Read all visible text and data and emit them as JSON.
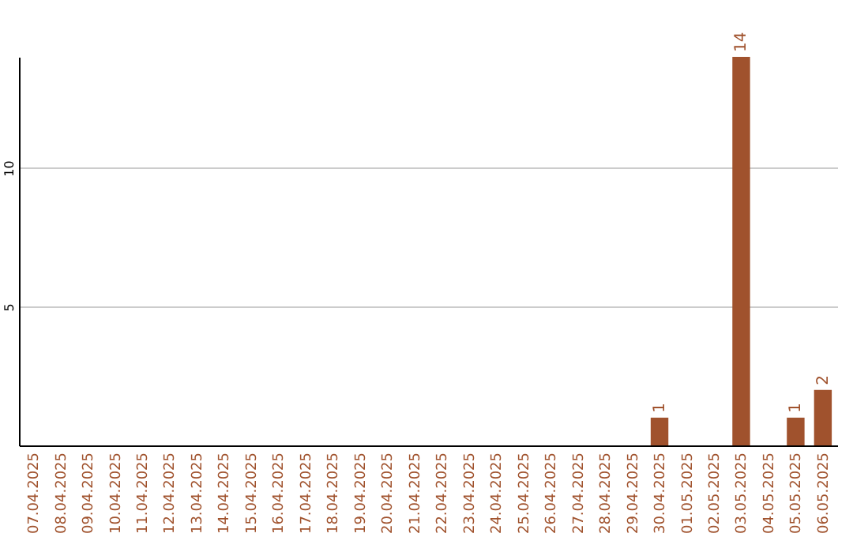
{
  "chart_data": {
    "type": "bar",
    "categories": [
      "07.04.2025",
      "08.04.2025",
      "09.04.2025",
      "10.04.2025",
      "11.04.2025",
      "12.04.2025",
      "13.04.2025",
      "14.04.2025",
      "15.04.2025",
      "16.04.2025",
      "17.04.2025",
      "18.04.2025",
      "19.04.2025",
      "20.04.2025",
      "21.04.2025",
      "22.04.2025",
      "23.04.2025",
      "24.04.2025",
      "25.04.2025",
      "26.04.2025",
      "27.04.2025",
      "28.04.2025",
      "29.04.2025",
      "30.04.2025",
      "01.05.2025",
      "02.05.2025",
      "03.05.2025",
      "04.05.2025",
      "05.05.2025",
      "06.05.2025"
    ],
    "values": [
      0,
      0,
      0,
      0,
      0,
      0,
      0,
      0,
      0,
      0,
      0,
      0,
      0,
      0,
      0,
      0,
      0,
      0,
      0,
      0,
      0,
      0,
      0,
      1,
      0,
      0,
      14,
      0,
      1,
      2
    ],
    "value_labels": [
      null,
      null,
      null,
      null,
      null,
      null,
      null,
      null,
      null,
      null,
      null,
      null,
      null,
      null,
      null,
      null,
      null,
      null,
      null,
      null,
      null,
      null,
      null,
      "1",
      null,
      null,
      "14",
      null,
      "1",
      "2"
    ],
    "color": "#a0522d",
    "ylim": [
      0,
      14
    ],
    "yticks": [
      5,
      10
    ],
    "grid": "y"
  }
}
